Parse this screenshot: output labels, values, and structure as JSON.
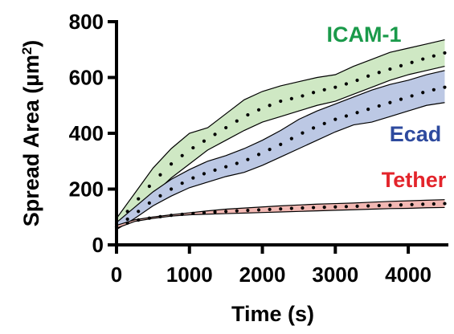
{
  "chart_data": {
    "type": "area",
    "xlabel": "Time (s)",
    "ylabel_main": "Spread Area (µm",
    "ylabel_sup": "2",
    "ylabel_close": ")",
    "xlim": [
      0,
      4550
    ],
    "ylim": [
      0,
      800
    ],
    "x_ticks": [
      0,
      1000,
      2000,
      3000,
      4000
    ],
    "x_tick_labels": [
      "0",
      "1000",
      "2000",
      "3000",
      "4000"
    ],
    "y_ticks": [
      0,
      200,
      400,
      600,
      800
    ],
    "y_tick_labels": [
      "0",
      "200",
      "400",
      "600",
      "800"
    ],
    "grid": false,
    "series": [
      {
        "name": "ICAM-1",
        "color": "#1a9a4a",
        "fill": "#cfe8c4",
        "x": [
          0,
          250,
          500,
          750,
          1000,
          1250,
          1500,
          1750,
          2000,
          2250,
          2500,
          2750,
          3000,
          3250,
          3500,
          3750,
          4000,
          4250,
          4500
        ],
        "upper": [
          95,
          185,
          275,
          345,
          400,
          420,
          470,
          520,
          550,
          570,
          585,
          600,
          610,
          640,
          665,
          690,
          705,
          720,
          735
        ],
        "lower": [
          60,
          115,
          180,
          240,
          290,
          340,
          375,
          410,
          440,
          460,
          480,
          500,
          515,
          540,
          565,
          590,
          610,
          625,
          640
        ],
        "mean": [
          75,
          150,
          225,
          290,
          340,
          380,
          420,
          460,
          490,
          515,
          530,
          550,
          565,
          585,
          610,
          630,
          650,
          670,
          688
        ]
      },
      {
        "name": "Ecad",
        "color": "#2e4a9e",
        "fill": "#bcc8e4",
        "x": [
          0,
          250,
          500,
          750,
          1000,
          1250,
          1500,
          1750,
          2000,
          2250,
          2500,
          2750,
          3000,
          3250,
          3500,
          3750,
          4000,
          4250,
          4500
        ],
        "upper": [
          80,
          135,
          190,
          235,
          270,
          300,
          320,
          345,
          375,
          410,
          450,
          480,
          505,
          530,
          555,
          575,
          590,
          610,
          625
        ],
        "lower": [
          55,
          95,
          140,
          175,
          205,
          225,
          245,
          260,
          285,
          315,
          345,
          375,
          405,
          430,
          440,
          460,
          480,
          500,
          510
        ],
        "mean": [
          65,
          110,
          160,
          200,
          235,
          260,
          280,
          300,
          330,
          360,
          395,
          425,
          450,
          470,
          490,
          510,
          530,
          550,
          565
        ]
      },
      {
        "name": "Tether",
        "color": "#e3242b",
        "fill": "#f2b8b3",
        "x": [
          0,
          250,
          500,
          750,
          1000,
          1250,
          1500,
          1750,
          2000,
          2250,
          2500,
          2750,
          3000,
          3250,
          3500,
          3750,
          4000,
          4250,
          4500
        ],
        "upper": [
          70,
          90,
          100,
          108,
          115,
          122,
          128,
          132,
          136,
          140,
          143,
          146,
          148,
          150,
          153,
          156,
          158,
          160,
          162
        ],
        "lower": [
          60,
          84,
          95,
          103,
          108,
          110,
          112,
          114,
          116,
          118,
          120,
          122,
          124,
          126,
          128,
          130,
          131,
          133,
          134
        ],
        "mean": [
          65,
          87,
          98,
          106,
          112,
          116,
          120,
          123,
          126,
          129,
          132,
          134,
          136,
          138,
          140,
          142,
          144,
          146,
          148
        ]
      }
    ]
  }
}
